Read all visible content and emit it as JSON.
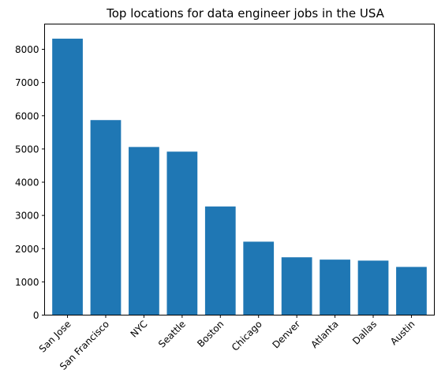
{
  "chart_data": {
    "type": "bar",
    "title": "Top locations for data engineer jobs in the USA",
    "xlabel": "",
    "ylabel": "",
    "categories": [
      "San Jose",
      "San Francisco",
      "NYC",
      "Seattle",
      "Boston",
      "Chicago",
      "Denver",
      "Atlanta",
      "Dallas",
      "Austin"
    ],
    "values": [
      8320,
      5870,
      5060,
      4920,
      3270,
      2210,
      1740,
      1670,
      1640,
      1450
    ],
    "ylim": [
      0,
      8760
    ],
    "yticks": [
      0,
      1000,
      2000,
      3000,
      4000,
      5000,
      6000,
      7000,
      8000
    ],
    "bar_color": "#1f77b4",
    "grid": false,
    "x_tick_rotation": 45
  }
}
